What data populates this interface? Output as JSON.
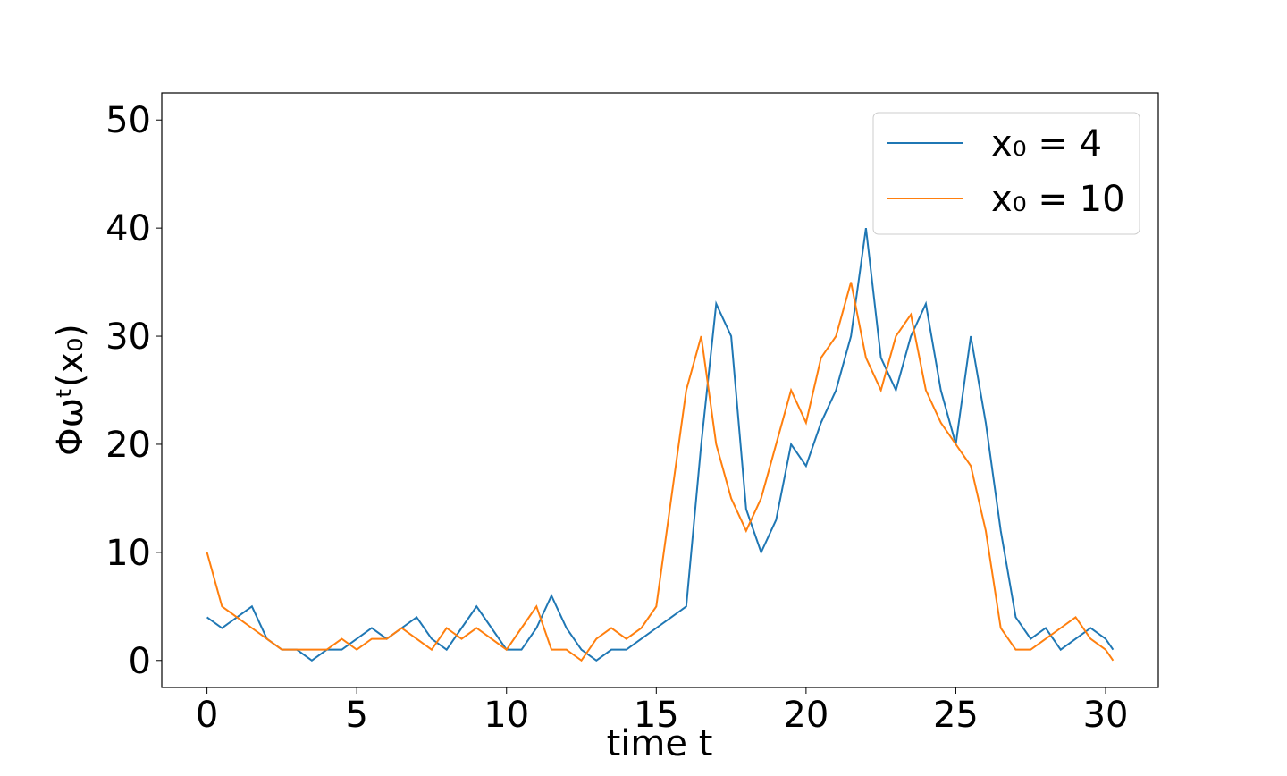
{
  "chart_data": {
    "type": "line",
    "xlabel": "time t",
    "ylabel": "Φωᵗ(x₀)",
    "x": [
      0,
      0.5,
      1,
      1.5,
      2,
      2.5,
      3,
      3.5,
      4,
      4.5,
      5,
      5.5,
      6,
      6.5,
      7,
      7.5,
      8,
      8.5,
      9,
      9.5,
      10,
      10.5,
      11,
      11.5,
      12,
      12.5,
      13,
      13.5,
      14,
      14.5,
      15,
      15.5,
      16,
      16.5,
      17,
      17.5,
      18,
      18.5,
      19,
      19.5,
      20,
      20.5,
      21,
      21.5,
      22,
      22.5,
      23,
      23.5,
      24,
      24.5,
      25,
      25.5,
      26,
      26.5,
      27,
      27.5,
      28,
      28.5,
      29,
      29.5,
      30,
      30.25
    ],
    "series": [
      {
        "name": "x₀ = 4",
        "color": "#1f77b4",
        "values": [
          4,
          3,
          4,
          5,
          2,
          1,
          1,
          0,
          1,
          1,
          2,
          3,
          2,
          3,
          4,
          2,
          1,
          3,
          5,
          3,
          1,
          1,
          3,
          6,
          3,
          1,
          0,
          1,
          1,
          2,
          3,
          4,
          5,
          20,
          33,
          30,
          14,
          10,
          13,
          20,
          18,
          22,
          25,
          30,
          40,
          28,
          25,
          30,
          33,
          25,
          20,
          30,
          22,
          12,
          4,
          2,
          3,
          1,
          2,
          3,
          2,
          1
        ]
      },
      {
        "name": "x₀ = 10",
        "color": "#ff7f0e",
        "values": [
          10,
          5,
          4,
          3,
          2,
          1,
          1,
          1,
          1,
          2,
          1,
          2,
          2,
          3,
          2,
          1,
          3,
          2,
          3,
          2,
          1,
          3,
          5,
          1,
          1,
          0,
          2,
          3,
          2,
          3,
          5,
          15,
          25,
          30,
          20,
          15,
          12,
          15,
          20,
          25,
          22,
          28,
          30,
          35,
          28,
          25,
          30,
          32,
          25,
          22,
          20,
          18,
          12,
          3,
          1,
          1,
          2,
          3,
          4,
          2,
          1,
          0
        ]
      }
    ],
    "xlim": [
      -1.51,
      31.76
    ],
    "xticks": [
      0,
      5,
      10,
      15,
      20,
      25,
      30
    ],
    "ylim": [
      -2.5,
      52.5
    ],
    "yticks": [
      0,
      10,
      20,
      30,
      40,
      50
    ],
    "legend": "upper right"
  }
}
